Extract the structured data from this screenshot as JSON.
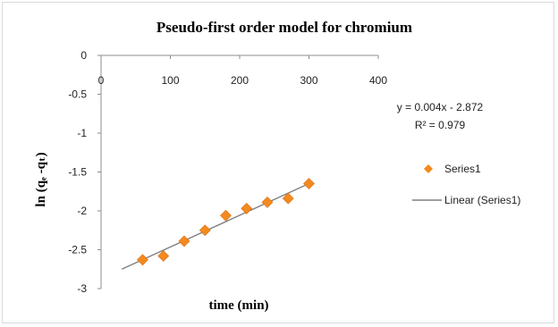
{
  "chart_data": {
    "type": "scatter",
    "title": "Pseudo-first order model for chromium",
    "xlabel": "time (min)",
    "ylabel": "ln (qₑ -qₜ)",
    "xlim": [
      0,
      400
    ],
    "ylim": [
      -3,
      0
    ],
    "xticks": [
      "0",
      "100",
      "200",
      "300",
      "400"
    ],
    "yticks": [
      "0",
      "-0.5",
      "-1",
      "-1.5",
      "-2",
      "-2.5",
      "-3"
    ],
    "series": [
      {
        "name": "Series1",
        "marker": "diamond",
        "color": "#f38a1e",
        "x": [
          60,
          90,
          120,
          150,
          180,
          210,
          240,
          270,
          300
        ],
        "y": [
          -2.63,
          -2.58,
          -2.39,
          -2.25,
          -2.06,
          -1.97,
          -1.89,
          -1.84,
          -1.65
        ]
      }
    ],
    "trendline": {
      "name": "Linear (Series1)",
      "color": "#7f7f7f",
      "x": [
        30,
        300
      ],
      "y": [
        -2.75,
        -1.65
      ]
    },
    "equation": "y = 0.004x - 2.872",
    "r_squared": "R² = 0.979",
    "legend": "right",
    "grid": false
  }
}
